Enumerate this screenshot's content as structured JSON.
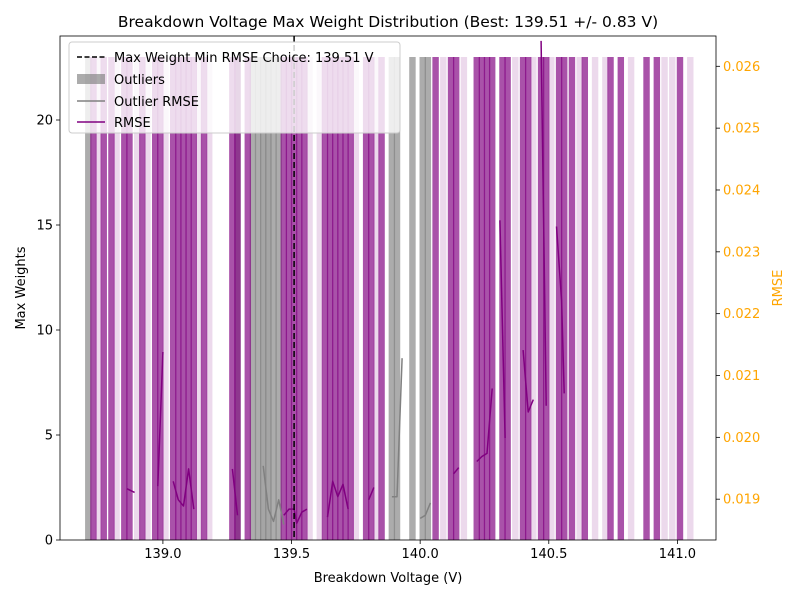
{
  "chart_data": {
    "type": "bar",
    "title": "Breakdown Voltage Max Weight Distribution (Best: 139.51 +/- 0.83 V)",
    "xlabel": "Breakdown Voltage (V)",
    "ylabel": "Max Weights",
    "ylabel_right": "RMSE",
    "xlim": [
      138.6,
      141.15
    ],
    "ylim": [
      0,
      24
    ],
    "ylim_right": [
      0.01834,
      0.02649
    ],
    "x_ticks": [
      "139.0",
      "139.5",
      "140.0",
      "140.5",
      "141.0"
    ],
    "y_ticks": [
      "0",
      "5",
      "10",
      "15",
      "20"
    ],
    "y_ticks_right": [
      "0.019",
      "0.020",
      "0.021",
      "0.022",
      "0.023",
      "0.024",
      "0.025",
      "0.026"
    ],
    "bar_height": 23,
    "bar_width": 0.025,
    "colors": {
      "rmse_bar": "#800080",
      "outlier_bar": "#808080",
      "rmse_line": "#800080",
      "outlier_line": "#808080",
      "right_axis": "#ffa500",
      "choice_line": "#000000"
    },
    "choice": {
      "x": 139.51,
      "label": "Max Weight Min RMSE Choice: 139.51 V"
    },
    "legend": {
      "placement": "upper-left",
      "entries": [
        {
          "label": "Max Weight Min RMSE Choice: 139.51 V",
          "style": "dashed-black"
        },
        {
          "label": "Outliers",
          "style": "gray-patch"
        },
        {
          "label": "Outlier RMSE",
          "style": "gray-line"
        },
        {
          "label": "RMSE",
          "style": "purple-line"
        }
      ]
    },
    "series": [
      {
        "name": "Outliers",
        "bars_x": [
          138.71,
          139.29,
          139.35,
          139.37,
          139.39,
          139.41,
          139.43,
          139.45,
          139.89,
          139.91,
          139.97,
          140.01,
          140.03
        ],
        "light_bars_x": [
          139.39,
          139.41
        ]
      },
      {
        "name": "RMSE bars",
        "bars_x": [
          138.73,
          138.77,
          138.8,
          138.85,
          138.87,
          138.92,
          138.97,
          138.99,
          139.04,
          139.06,
          139.08,
          139.1,
          139.12,
          139.16,
          139.27,
          139.29,
          139.33,
          139.47,
          139.49,
          139.51,
          139.53,
          139.55,
          139.63,
          139.65,
          139.67,
          139.69,
          139.71,
          139.73,
          139.79,
          139.81,
          139.85,
          140.06,
          140.12,
          140.14,
          140.22,
          140.24,
          140.26,
          140.28,
          140.32,
          140.34,
          140.4,
          140.42,
          140.47,
          140.49,
          140.54,
          140.56,
          140.59,
          140.64,
          140.74,
          140.78,
          140.88,
          140.92,
          141.01
        ],
        "light_bars_x": [
          138.75,
          138.82,
          138.9,
          138.94,
          139.01,
          139.14,
          139.18,
          139.57,
          139.61,
          139.75,
          139.83,
          140.09,
          140.17,
          140.37,
          140.44,
          140.51,
          140.62,
          140.68,
          140.72,
          140.82,
          140.95,
          140.98,
          141.05
        ]
      },
      {
        "name": "Outlier RMSE",
        "segments": [
          [
            [
              139.39,
              0.01954
            ],
            [
              139.41,
              0.01884
            ],
            [
              139.43,
              0.01864
            ],
            [
              139.45,
              0.01899
            ],
            [
              139.47,
              0.01859
            ]
          ],
          [
            [
              139.89,
              0.01904
            ],
            [
              139.91,
              0.01904
            ],
            [
              139.93,
              0.02128
            ]
          ],
          [
            [
              140.0,
              0.01869
            ],
            [
              140.02,
              0.01874
            ],
            [
              140.04,
              0.01894
            ]
          ]
        ]
      },
      {
        "name": "RMSE",
        "segments": [
          [
            [
              138.86,
              0.01917
            ],
            [
              138.89,
              0.01911
            ]
          ],
          [
            [
              138.98,
              0.01921
            ],
            [
              139.0,
              0.02138
            ]
          ],
          [
            [
              139.04,
              0.01929
            ],
            [
              139.06,
              0.01899
            ],
            [
              139.08,
              0.01889
            ],
            [
              139.1,
              0.01949
            ],
            [
              139.12,
              0.01884
            ]
          ],
          [
            [
              139.27,
              0.01949
            ],
            [
              139.29,
              0.01874
            ]
          ],
          [
            [
              139.47,
              0.01874
            ],
            [
              139.49,
              0.01884
            ],
            [
              139.51,
              0.01884
            ],
            [
              139.52,
              0.01861
            ],
            [
              139.54,
              0.01879
            ],
            [
              139.56,
              0.01884
            ]
          ],
          [
            [
              139.64,
              0.01871
            ],
            [
              139.66,
              0.01929
            ],
            [
              139.68,
              0.01904
            ],
            [
              139.7,
              0.01924
            ],
            [
              139.72,
              0.01884
            ]
          ],
          [
            [
              139.8,
              0.01899
            ],
            [
              139.82,
              0.01919
            ]
          ],
          [
            [
              140.13,
              0.01941
            ],
            [
              140.15,
              0.01951
            ]
          ],
          [
            [
              140.22,
              0.01961
            ],
            [
              140.24,
              0.01969
            ],
            [
              140.26,
              0.01974
            ],
            [
              140.28,
              0.02079
            ]
          ],
          [
            [
              140.31,
              0.02351
            ],
            [
              140.33,
              0.01999
            ]
          ],
          [
            [
              140.4,
              0.02141
            ],
            [
              140.42,
              0.02041
            ],
            [
              140.44,
              0.02061
            ]
          ],
          [
            [
              140.47,
              0.02641
            ],
            [
              140.49,
              0.02051
            ]
          ],
          [
            [
              140.53,
              0.02341
            ],
            [
              140.55,
              0.02221
            ],
            [
              140.56,
              0.02071
            ]
          ]
        ]
      }
    ]
  }
}
